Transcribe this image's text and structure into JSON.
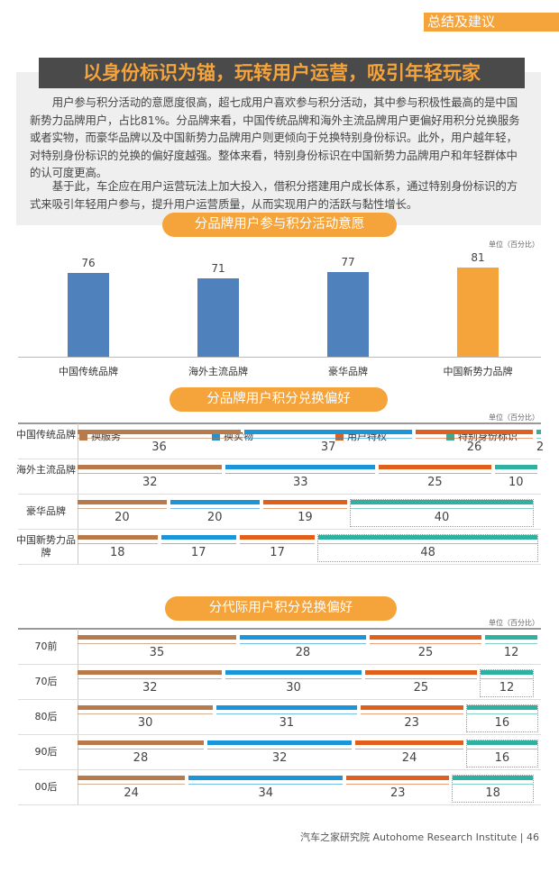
{
  "section_tag": "总结及建议",
  "title": "以身份标识为锚，玩转用户运营，吸引年轻玩家",
  "paragraphs": [
    "用户参与积分活动的意愿度很高，超七成用户喜欢参与积分活动，其中参与积极性最高的是中国新势力品牌用户，占比81%。分品牌来看，中国传统品牌和海外主流品牌用户更偏好用积分兑换服务或者实物，而豪华品牌以及中国新势力品牌用户则更倾向于兑换特别身份标识。此外，用户越年轻，对特别身份标识的兑换的偏好度越强。整体来看，特别身份标识在中国新势力品牌用户和年轻群体中的认可度更高。",
    "基于此，车企应在用户运营玩法上加大投入，借积分搭建用户成长体系，通过特别身份标识的方式来吸引年轻用户参与，提升用户运营质量，从而实现用户的活跃与黏性增长。"
  ],
  "footer": "汽车之家研究院  Autohome Research Institute  |  46",
  "chart_data": [
    {
      "type": "bar",
      "title": "分品牌用户参与积分活动意愿",
      "unit": "单位（百分比）",
      "categories": [
        "中国传统品牌",
        "海外主流品牌",
        "豪华品牌",
        "中国新势力品牌"
      ],
      "values": [
        76,
        71,
        77,
        81
      ],
      "colors": [
        "#4f81bd",
        "#4f81bd",
        "#4f81bd",
        "#f5a33b"
      ]
    },
    {
      "type": "bar",
      "stacked": true,
      "orientation": "horizontal",
      "title": "分品牌用户积分兑换偏好",
      "unit": "单位（百分比）",
      "legend": [
        "换服务",
        "换实物",
        "用户特权",
        "特别身份标识"
      ],
      "colors": [
        "#b97a4b",
        "#1a95d9",
        "#e0601b",
        "#2fb1a1"
      ],
      "categories": [
        "中国传统品牌",
        "海外主流品牌",
        "豪华品牌",
        "中国新势力品牌"
      ],
      "series": [
        [
          36,
          37,
          26,
          2
        ],
        [
          32,
          33,
          25,
          10
        ],
        [
          20,
          20,
          19,
          40
        ],
        [
          18,
          17,
          17,
          48
        ]
      ],
      "highlighted": [
        false,
        false,
        true,
        true
      ]
    },
    {
      "type": "bar",
      "stacked": true,
      "orientation": "horizontal",
      "title": "分代际用户积分兑换偏好",
      "unit": "单位（百分比）",
      "colors": [
        "#b97a4b",
        "#1a95d9",
        "#e0601b",
        "#2fb1a1"
      ],
      "categories": [
        "70前",
        "70后",
        "80后",
        "90后",
        "00后"
      ],
      "series": [
        [
          35,
          28,
          25,
          12
        ],
        [
          32,
          30,
          25,
          12
        ],
        [
          30,
          31,
          23,
          16
        ],
        [
          28,
          32,
          24,
          16
        ],
        [
          24,
          34,
          23,
          18
        ]
      ],
      "highlighted": [
        false,
        true,
        true,
        true,
        true
      ]
    }
  ]
}
